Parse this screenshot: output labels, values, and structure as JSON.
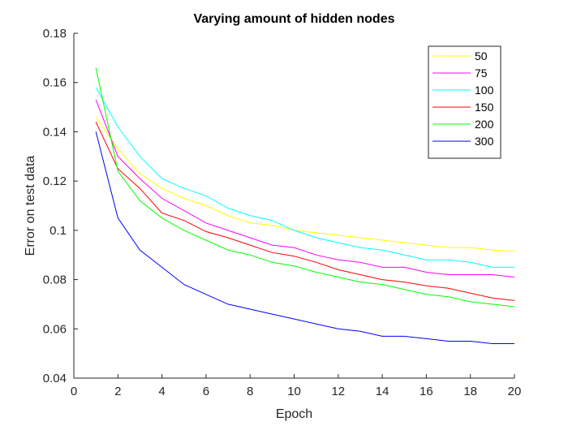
{
  "chart_data": {
    "type": "line",
    "title": "Varying amount of hidden nodes",
    "xlabel": "Epoch",
    "ylabel": "Error on test data",
    "xlim": [
      0,
      20
    ],
    "ylim": [
      0.04,
      0.18
    ],
    "xticks": [
      0,
      2,
      4,
      6,
      8,
      10,
      12,
      14,
      16,
      18,
      20
    ],
    "xtick_labels": [
      "0",
      "2",
      "4",
      "6",
      "8",
      "10",
      "12",
      "14",
      "16",
      "18",
      "20"
    ],
    "yticks": [
      0.04,
      0.06,
      0.08,
      0.1,
      0.12,
      0.14,
      0.16,
      0.18
    ],
    "ytick_labels": [
      "0.04",
      "0.06",
      "0.08",
      "0.1",
      "0.12",
      "0.14",
      "0.16",
      "0.18"
    ],
    "grid": false,
    "legend_position": "top-right",
    "x": [
      1,
      2,
      3,
      4,
      5,
      6,
      7,
      8,
      9,
      10,
      11,
      12,
      13,
      14,
      15,
      16,
      17,
      18,
      19,
      20
    ],
    "series": [
      {
        "name": "50",
        "color": "#ffff00",
        "values": [
          0.146,
          0.133,
          0.123,
          0.117,
          0.113,
          0.11,
          0.106,
          0.103,
          0.102,
          0.1,
          0.099,
          0.098,
          0.097,
          0.096,
          0.095,
          0.094,
          0.093,
          0.093,
          0.092,
          0.0915
        ]
      },
      {
        "name": "75",
        "color": "#ff00ff",
        "values": [
          0.153,
          0.13,
          0.121,
          0.113,
          0.108,
          0.103,
          0.1,
          0.097,
          0.094,
          0.093,
          0.09,
          0.088,
          0.087,
          0.085,
          0.085,
          0.083,
          0.082,
          0.082,
          0.082,
          0.081
        ]
      },
      {
        "name": "100",
        "color": "#00ffff",
        "values": [
          0.158,
          0.142,
          0.13,
          0.121,
          0.117,
          0.114,
          0.109,
          0.106,
          0.104,
          0.1,
          0.097,
          0.095,
          0.093,
          0.092,
          0.09,
          0.088,
          0.088,
          0.087,
          0.085,
          0.085
        ]
      },
      {
        "name": "150",
        "color": "#ff0000",
        "values": [
          0.144,
          0.125,
          0.117,
          0.107,
          0.104,
          0.0995,
          0.097,
          0.094,
          0.091,
          0.0895,
          0.087,
          0.084,
          0.082,
          0.08,
          0.079,
          0.0775,
          0.0765,
          0.0745,
          0.0725,
          0.0715
        ]
      },
      {
        "name": "200",
        "color": "#00ff00",
        "values": [
          0.166,
          0.124,
          0.112,
          0.105,
          0.1,
          0.096,
          0.092,
          0.09,
          0.087,
          0.0855,
          0.083,
          0.081,
          0.079,
          0.078,
          0.076,
          0.074,
          0.073,
          0.071,
          0.07,
          0.069
        ]
      },
      {
        "name": "300",
        "color": "#0000ff",
        "values": [
          0.14,
          0.105,
          0.092,
          0.085,
          0.078,
          0.074,
          0.07,
          0.068,
          0.066,
          0.064,
          0.062,
          0.06,
          0.059,
          0.057,
          0.057,
          0.056,
          0.055,
          0.055,
          0.054,
          0.054
        ]
      }
    ]
  }
}
